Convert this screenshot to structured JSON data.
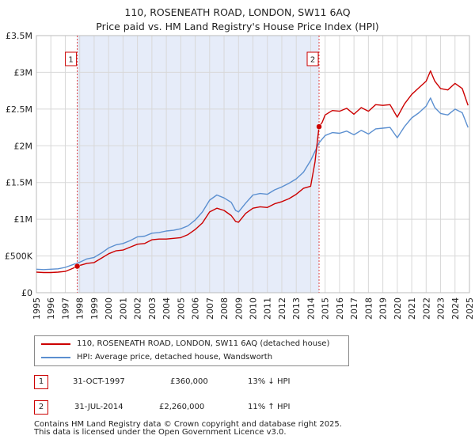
{
  "chart_data": {
    "type": "line",
    "title": "110, ROSENEATH ROAD, LONDON, SW11 6AQ",
    "subtitle": "Price paid vs. HM Land Registry's House Price Index (HPI)",
    "xlabel": "",
    "ylabel": "",
    "xlim": [
      1995,
      2025
    ],
    "ylim": [
      0,
      3500000
    ],
    "y_ticks": [
      {
        "value": 0,
        "label": "£0"
      },
      {
        "value": 500000,
        "label": "£500K"
      },
      {
        "value": 1000000,
        "label": "£1M"
      },
      {
        "value": 1500000,
        "label": "£1.5M"
      },
      {
        "value": 2000000,
        "label": "£2M"
      },
      {
        "value": 2500000,
        "label": "£2.5M"
      },
      {
        "value": 3000000,
        "label": "£3M"
      },
      {
        "value": 3500000,
        "label": "£3.5M"
      }
    ],
    "x_ticks": [
      "1995",
      "1996",
      "1997",
      "1998",
      "1999",
      "2000",
      "2001",
      "2002",
      "2003",
      "2004",
      "2005",
      "2006",
      "2007",
      "2008",
      "2009",
      "2010",
      "2011",
      "2012",
      "2013",
      "2014",
      "2015",
      "2016",
      "2017",
      "2018",
      "2019",
      "2020",
      "2021",
      "2022",
      "2023",
      "2024",
      "2025"
    ],
    "grid": true,
    "shaded_period": [
      1997.83,
      2014.58
    ],
    "series": [
      {
        "name": "110, ROSENEATH ROAD, LONDON, SW11 6AQ (detached house)",
        "color": "#cc0000",
        "x": [
          1995.0,
          1995.5,
          1996.0,
          1996.5,
          1997.0,
          1997.5,
          1997.83,
          1998.0,
          1998.5,
          1999.0,
          1999.5,
          2000.0,
          2000.5,
          2001.0,
          2001.5,
          2002.0,
          2002.5,
          2003.0,
          2003.5,
          2004.0,
          2004.5,
          2005.0,
          2005.5,
          2006.0,
          2006.5,
          2007.0,
          2007.5,
          2008.0,
          2008.5,
          2008.8,
          2009.0,
          2009.5,
          2010.0,
          2010.5,
          2011.0,
          2011.5,
          2012.0,
          2012.5,
          2013.0,
          2013.5,
          2014.0,
          2014.3,
          2014.58,
          2014.8,
          2015.0,
          2015.5,
          2016.0,
          2016.5,
          2017.0,
          2017.5,
          2018.0,
          2018.5,
          2019.0,
          2019.5,
          2020.0,
          2020.5,
          2021.0,
          2021.5,
          2022.0,
          2022.3,
          2022.6,
          2023.0,
          2023.5,
          2024.0,
          2024.5,
          2024.9
        ],
        "values": [
          280000,
          275000,
          275000,
          280000,
          290000,
          330000,
          360000,
          370000,
          400000,
          410000,
          470000,
          530000,
          570000,
          580000,
          620000,
          660000,
          670000,
          720000,
          730000,
          730000,
          740000,
          750000,
          790000,
          860000,
          950000,
          1100000,
          1150000,
          1120000,
          1050000,
          970000,
          960000,
          1080000,
          1150000,
          1170000,
          1160000,
          1210000,
          1240000,
          1280000,
          1340000,
          1420000,
          1450000,
          1780000,
          2260000,
          2320000,
          2420000,
          2480000,
          2470000,
          2510000,
          2430000,
          2520000,
          2470000,
          2560000,
          2550000,
          2560000,
          2390000,
          2570000,
          2700000,
          2790000,
          2880000,
          3020000,
          2880000,
          2780000,
          2760000,
          2850000,
          2780000,
          2550000
        ]
      },
      {
        "name": "HPI: Average price, detached house, Wandsworth",
        "color": "#5b8fd0",
        "x": [
          1995.0,
          1995.5,
          1996.0,
          1996.5,
          1997.0,
          1997.5,
          1998.0,
          1998.5,
          1999.0,
          1999.5,
          2000.0,
          2000.5,
          2001.0,
          2001.5,
          2002.0,
          2002.5,
          2003.0,
          2003.5,
          2004.0,
          2004.5,
          2005.0,
          2005.5,
          2006.0,
          2006.5,
          2007.0,
          2007.5,
          2008.0,
          2008.5,
          2008.8,
          2009.0,
          2009.5,
          2010.0,
          2010.5,
          2011.0,
          2011.5,
          2012.0,
          2012.5,
          2013.0,
          2013.5,
          2014.0,
          2014.58,
          2015.0,
          2015.5,
          2016.0,
          2016.5,
          2017.0,
          2017.5,
          2018.0,
          2018.5,
          2019.0,
          2019.5,
          2020.0,
          2020.5,
          2021.0,
          2021.5,
          2022.0,
          2022.3,
          2022.6,
          2023.0,
          2023.5,
          2024.0,
          2024.5,
          2024.9
        ],
        "values": [
          320000,
          315000,
          320000,
          325000,
          345000,
          380000,
          415000,
          460000,
          480000,
          540000,
          610000,
          650000,
          670000,
          710000,
          760000,
          770000,
          810000,
          820000,
          840000,
          850000,
          870000,
          910000,
          990000,
          1100000,
          1260000,
          1330000,
          1290000,
          1230000,
          1120000,
          1100000,
          1220000,
          1330000,
          1350000,
          1340000,
          1400000,
          1440000,
          1490000,
          1550000,
          1640000,
          1800000,
          2040000,
          2140000,
          2180000,
          2170000,
          2200000,
          2150000,
          2210000,
          2160000,
          2230000,
          2240000,
          2250000,
          2110000,
          2260000,
          2380000,
          2450000,
          2540000,
          2650000,
          2520000,
          2440000,
          2420000,
          2500000,
          2450000,
          2250000
        ]
      }
    ],
    "sales": [
      {
        "number": "1",
        "date": "31-OCT-1997",
        "year": 1997.83,
        "price": 360000,
        "price_label": "£360,000",
        "hpi_label": "13% ↓ HPI"
      },
      {
        "number": "2",
        "date": "31-JUL-2014",
        "year": 2014.58,
        "price": 2260000,
        "price_label": "£2,260,000",
        "hpi_label": "11% ↑ HPI"
      }
    ]
  },
  "legend": {
    "property_label": "110, ROSENEATH ROAD, LONDON, SW11 6AQ (detached house)",
    "hpi_label": "HPI: Average price, detached house, Wandsworth"
  },
  "footer": {
    "line1": "Contains HM Land Registry data © Crown copyright and database right 2025.",
    "line2": "This data is licensed under the Open Government Licence v3.0."
  },
  "colors": {
    "property": "#cc0000",
    "hpi": "#5b8fd0",
    "shade": "#dde6f7",
    "grid": "#d8d8d8"
  }
}
